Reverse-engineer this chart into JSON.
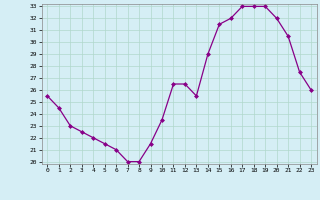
{
  "hours": [
    0,
    1,
    2,
    3,
    4,
    5,
    6,
    7,
    8,
    9,
    10,
    11,
    12,
    13,
    14,
    15,
    16,
    17,
    18,
    19,
    20,
    21,
    22,
    23
  ],
  "windchill": [
    25.5,
    24.5,
    23.0,
    22.5,
    22.0,
    21.5,
    21.0,
    20.0,
    20.0,
    21.5,
    23.5,
    26.5,
    26.5,
    25.5,
    29.0,
    31.5,
    32.0,
    33.0,
    33.0,
    33.0,
    32.0,
    30.5,
    27.5,
    26.0
  ],
  "ylim": [
    20,
    33
  ],
  "yticks": [
    20,
    21,
    22,
    23,
    24,
    25,
    26,
    27,
    28,
    29,
    30,
    31,
    32,
    33
  ],
  "xticks": [
    0,
    1,
    2,
    3,
    4,
    5,
    6,
    7,
    8,
    9,
    10,
    11,
    12,
    13,
    14,
    15,
    16,
    17,
    18,
    19,
    20,
    21,
    22,
    23
  ],
  "line_color": "#880088",
  "marker": "D",
  "marker_size": 2.0,
  "bg_color": "#d5eef5",
  "grid_color": "#b0d8cc",
  "xlabel_bg": "#5533aa",
  "xlabel_fg": "#ffffff"
}
